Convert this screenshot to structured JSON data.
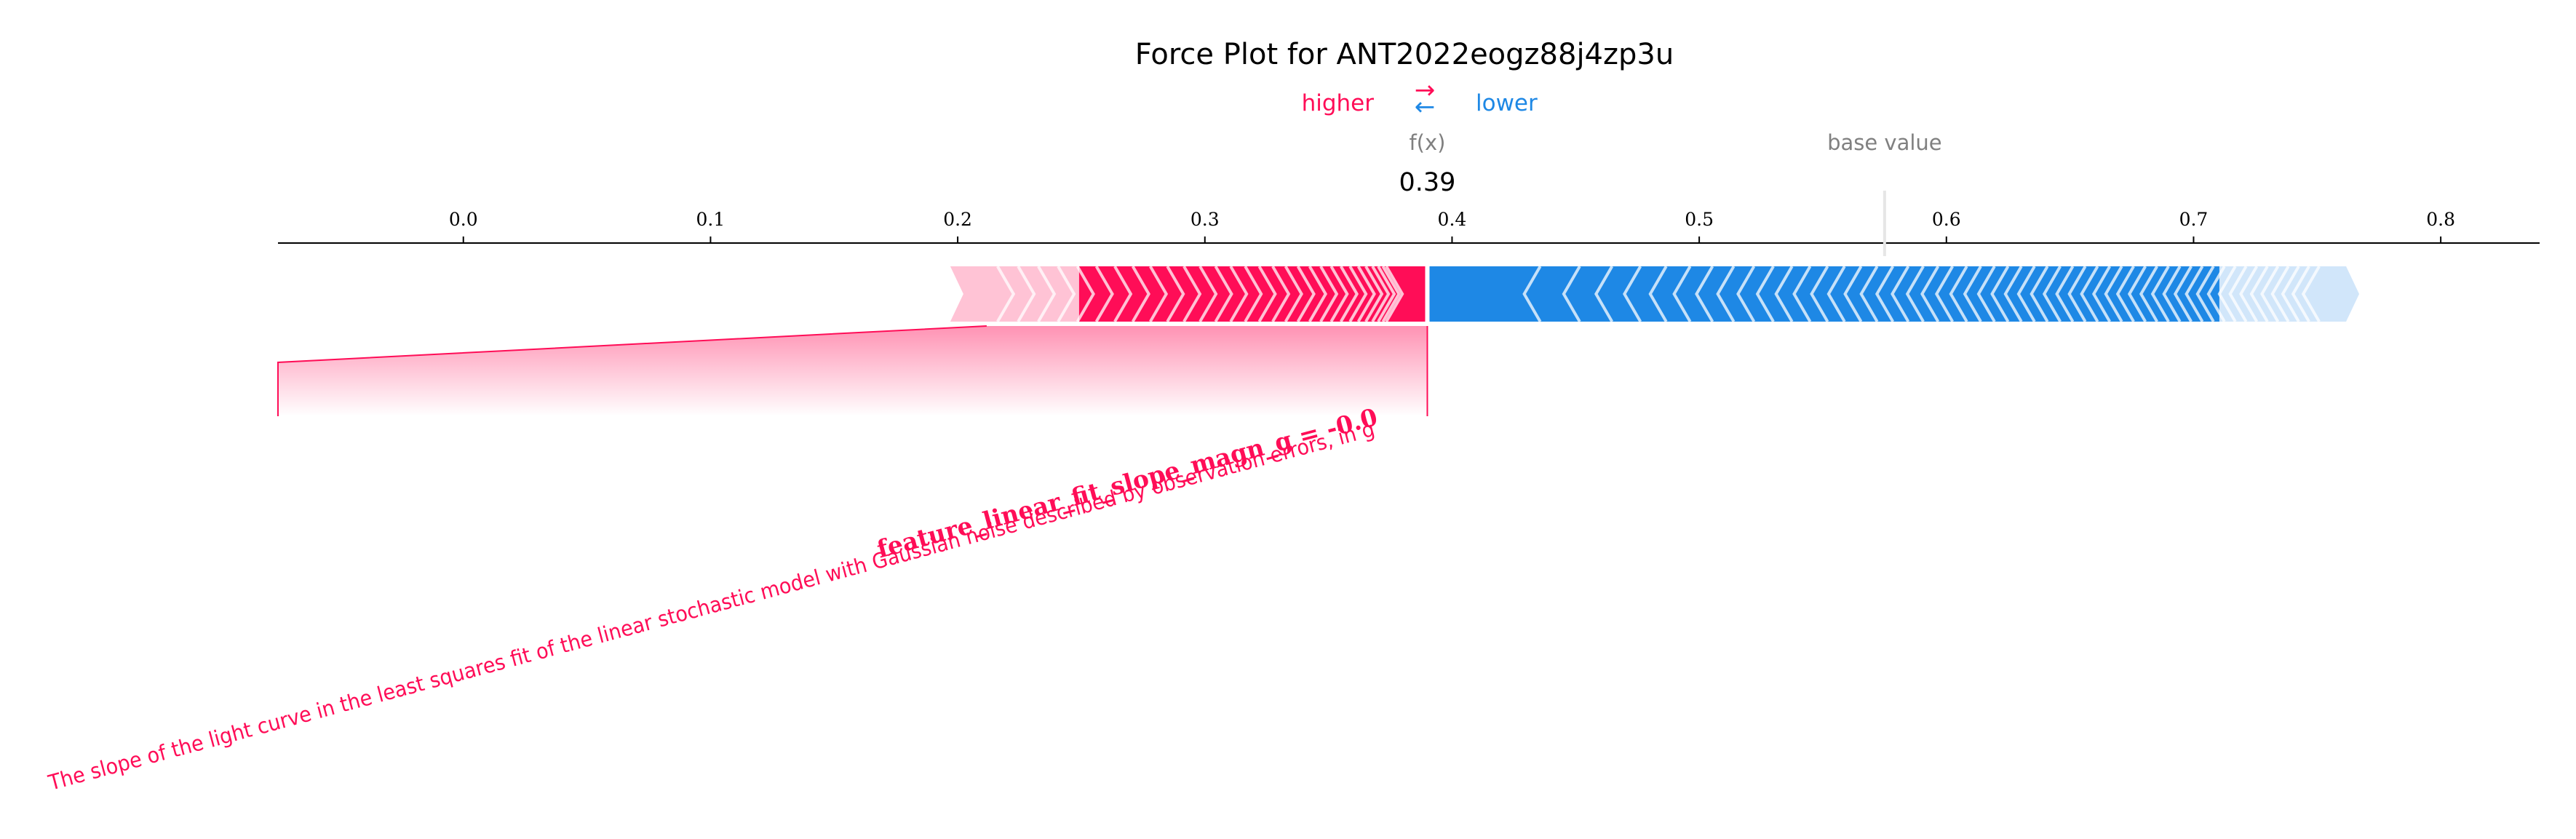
{
  "chart_data": {
    "type": "force",
    "title": "Force Plot for ANT2022eogz88j4zp3u",
    "legend": {
      "higher": "higher",
      "lower": "lower",
      "arrows_symbol": "⇄"
    },
    "fx_label": "f(x)",
    "fx_value": 0.39,
    "fx_value_label": "0.39",
    "base_value_label": "base value",
    "base_value": 0.575,
    "xlim": [
      -0.075,
      0.84
    ],
    "ticks": [
      0.0,
      0.1,
      0.2,
      0.3,
      0.4,
      0.5,
      0.6,
      0.7,
      0.8
    ],
    "tick_labels": [
      "0.0",
      "0.1",
      "0.2",
      "0.3",
      "0.4",
      "0.5",
      "0.6",
      "0.7",
      "0.8"
    ],
    "positive_range": [
      0.197,
      0.39
    ],
    "negative_range": [
      0.39,
      0.767
    ],
    "feature_annotation": "feature_linear_fit_slope_magn_g = -0.0",
    "feature_description": "The slope of the light curve in the least squares fit of the linear stochastic model with Gaussian noise described by observation errors, in g",
    "colors": {
      "positive": "#ff0d57",
      "positive_light": "#ffc3d5",
      "negative": "#1e88e5",
      "negative_light": "#d1e6fa",
      "axis": "#000000",
      "muted": "#808080"
    }
  }
}
